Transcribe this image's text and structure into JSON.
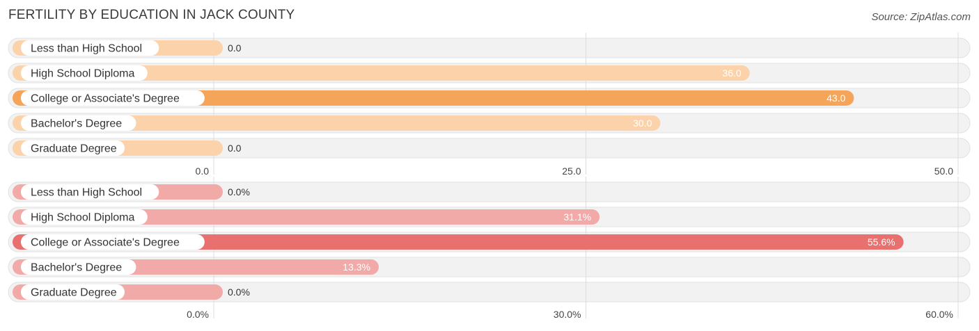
{
  "title": "FERTILITY BY EDUCATION IN JACK COUNTY",
  "source": "Source: ZipAtlas.com",
  "colors": {
    "orange_dark": "#f5a55a",
    "orange_light": "#fbd2aa",
    "red_dark": "#e8706e",
    "red_light": "#f2aaa8"
  },
  "chart_data": [
    {
      "type": "bar",
      "orientation": "horizontal",
      "categories": [
        "Less than High School",
        "High School Diploma",
        "College or Associate's Degree",
        "Bachelor's Degree",
        "Graduate Degree"
      ],
      "values": [
        0.0,
        36.0,
        43.0,
        30.0,
        0.0
      ],
      "value_labels": [
        "0.0",
        "36.0",
        "43.0",
        "30.0",
        "0.0"
      ],
      "xlim": [
        0,
        50
      ],
      "ticks": [
        0,
        25,
        50
      ],
      "tick_labels": [
        "0.0",
        "25.0",
        "50.0"
      ],
      "grid": true
    },
    {
      "type": "bar",
      "orientation": "horizontal",
      "categories": [
        "Less than High School",
        "High School Diploma",
        "College or Associate's Degree",
        "Bachelor's Degree",
        "Graduate Degree"
      ],
      "values": [
        0.0,
        31.1,
        55.6,
        13.3,
        0.0
      ],
      "value_labels": [
        "0.0%",
        "31.1%",
        "55.6%",
        "13.3%",
        "0.0%"
      ],
      "xlim": [
        0,
        60
      ],
      "ticks": [
        0,
        30,
        60
      ],
      "tick_labels": [
        "0.0%",
        "30.0%",
        "60.0%"
      ],
      "grid": true
    }
  ]
}
